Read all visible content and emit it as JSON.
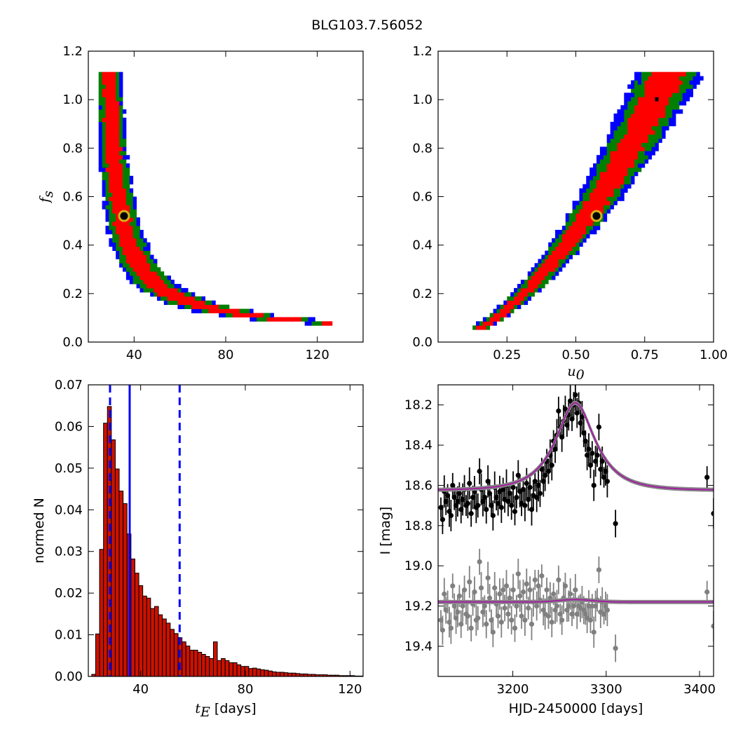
{
  "figure": {
    "title": "BLG103.7.56052"
  },
  "chart_data": [
    {
      "type": "heatmap",
      "id": "fs-vs-tE",
      "xlabel": "",
      "ylabel": "f_s",
      "xlim": [
        20,
        140
      ],
      "ylim": [
        0.0,
        1.2
      ],
      "xticks": [
        40,
        80,
        120
      ],
      "yticks": [
        0.0,
        0.2,
        0.4,
        0.6,
        0.8,
        1.0,
        1.2
      ],
      "levels": [
        {
          "name": "outer",
          "color": "#0000ff"
        },
        {
          "name": "2-sigma",
          "color": "#007f00"
        },
        {
          "name": "1-sigma",
          "color": "#ff0000"
        },
        {
          "name": "core",
          "color": "#000000"
        }
      ],
      "ridge": {
        "form": "power",
        "a": 0.1005,
        "c": 0.28,
        "p": 1.3
      },
      "best_fit": {
        "x": 35.6,
        "y": 0.52
      },
      "marker_colors": {
        "edge": "#d4b21a",
        "face": "#000000"
      }
    },
    {
      "type": "heatmap",
      "id": "fs-vs-u0",
      "xlabel": "u_0",
      "ylabel": "",
      "xlim": [
        0.0,
        1.0
      ],
      "ylim": [
        0.0,
        1.2
      ],
      "xticks": [
        0.25,
        0.5,
        0.75,
        1.0
      ],
      "xticklabels": [
        "0.25",
        "0.50",
        "0.75",
        "1.00"
      ],
      "yticks": [
        0.0,
        0.2,
        0.4,
        0.6,
        0.8,
        1.0,
        1.2
      ],
      "ridge": {
        "form": "power",
        "a": 1.45,
        "p": 1.73
      },
      "best_fit": {
        "x": 0.575,
        "y": 0.52
      }
    },
    {
      "type": "bar",
      "id": "tE-histogram",
      "xlabel": "t_E  [days]",
      "ylabel": "normed N",
      "xlim": [
        20,
        125
      ],
      "ylim": [
        0.0,
        0.07
      ],
      "xticks": [
        40,
        80,
        120
      ],
      "yticks": [
        0.0,
        0.01,
        0.02,
        0.03,
        0.04,
        0.05,
        0.06,
        0.07
      ],
      "ytick_labels": [
        "0.00",
        "0.01",
        "0.02",
        "0.03",
        "0.04",
        "0.05",
        "0.06",
        "0.07"
      ],
      "bin_start": 21.3,
      "bin_width": 1.5,
      "values": [
        0.0005,
        0.0102,
        0.0305,
        0.0608,
        0.0648,
        0.0568,
        0.0498,
        0.0445,
        0.0415,
        0.0342,
        0.0282,
        0.0248,
        0.0218,
        0.0193,
        0.0188,
        0.0163,
        0.0168,
        0.0148,
        0.0138,
        0.0128,
        0.0113,
        0.0103,
        0.0093,
        0.0083,
        0.0073,
        0.0063,
        0.0063,
        0.0058,
        0.0053,
        0.0048,
        0.0043,
        0.0083,
        0.0038,
        0.0043,
        0.0038,
        0.0033,
        0.0033,
        0.0028,
        0.0024,
        0.0024,
        0.0019,
        0.002,
        0.0018,
        0.0016,
        0.0015,
        0.0013,
        0.0011,
        0.001,
        0.001,
        0.0009,
        0.0008,
        0.0008,
        0.0007,
        0.0006,
        0.0006,
        0.0005,
        0.0005,
        0.0004,
        0.0004,
        0.0004,
        0.0003,
        0.0003,
        0.0003,
        0.0002,
        0.0002,
        0.0002,
        0.0002,
        0.0001,
        0.0001
      ],
      "bar_color": "#cc1100",
      "vlines": [
        {
          "x": 28.3,
          "style": "dashed",
          "color": "#0000ff"
        },
        {
          "x": 35.8,
          "style": "solid",
          "color": "#0000ff"
        },
        {
          "x": 54.9,
          "style": "dashed",
          "color": "#0000ff"
        }
      ]
    },
    {
      "type": "scatter",
      "id": "light-curve",
      "xlabel": "HJD-2450000 [days]",
      "ylabel": "I [mag]",
      "xlim": [
        3120,
        3415
      ],
      "ylim": [
        19.55,
        18.1
      ],
      "xticks": [
        3200,
        3300,
        3400
      ],
      "yticks": [
        18.2,
        18.4,
        18.6,
        18.8,
        19.0,
        19.2,
        19.4
      ],
      "ytick_labels": [
        "18.2",
        "18.4",
        "18.6",
        "18.8",
        "19.0",
        "19.2",
        "19.4"
      ],
      "model": {
        "t0": 3267,
        "tE": 35.8,
        "u0": 0.575,
        "fs": 0.52,
        "I_base": 18.625,
        "residual_base": 19.18
      },
      "colors": {
        "data": "#000000",
        "residuals": "#808080",
        "model": "#a020a0",
        "model_band": "#888888"
      },
      "series": [
        {
          "role": "data",
          "points": [
            [
              3123,
              18.71
            ],
            [
              3124.8,
              18.77
            ],
            [
              3126.6,
              18.63
            ],
            [
              3128.4,
              18.68
            ],
            [
              3130.2,
              18.65
            ],
            [
              3132,
              18.73
            ],
            [
              3133.8,
              18.75
            ],
            [
              3135.6,
              18.6
            ],
            [
              3137.4,
              18.66
            ],
            [
              3139.2,
              18.7
            ],
            [
              3141,
              18.68
            ],
            [
              3142.8,
              18.64
            ],
            [
              3144.6,
              18.72
            ],
            [
              3146.4,
              18.67
            ],
            [
              3148.2,
              18.62
            ],
            [
              3150,
              18.7
            ],
            [
              3151.8,
              18.69
            ],
            [
              3153.6,
              18.59
            ],
            [
              3155.4,
              18.74
            ],
            [
              3157.2,
              18.66
            ],
            [
              3159,
              18.63
            ],
            [
              3160.8,
              18.71
            ],
            [
              3162.6,
              18.7
            ],
            [
              3164.4,
              18.53
            ],
            [
              3166.2,
              18.62
            ],
            [
              3168,
              18.68
            ],
            [
              3169.8,
              18.66
            ],
            [
              3171.6,
              18.72
            ],
            [
              3173.4,
              18.58
            ],
            [
              3175.2,
              18.64
            ],
            [
              3177,
              18.7
            ],
            [
              3178.8,
              18.75
            ],
            [
              3180.6,
              18.61
            ],
            [
              3182.4,
              18.66
            ],
            [
              3184.2,
              18.69
            ],
            [
              3186,
              18.63
            ],
            [
              3187.8,
              18.71
            ],
            [
              3189.6,
              18.62
            ],
            [
              3191.4,
              18.67
            ],
            [
              3193.2,
              18.6
            ],
            [
              3195,
              18.68
            ],
            [
              3196.8,
              18.64
            ],
            [
              3198.6,
              18.7
            ],
            [
              3200.4,
              18.61
            ],
            [
              3202.2,
              18.73
            ],
            [
              3204,
              18.66
            ],
            [
              3205.8,
              18.55
            ],
            [
              3207.6,
              18.63
            ],
            [
              3209.4,
              18.69
            ],
            [
              3211.2,
              18.62
            ],
            [
              3213,
              18.7
            ],
            [
              3214.8,
              18.59
            ],
            [
              3216.6,
              18.67
            ],
            [
              3218.4,
              18.61
            ],
            [
              3220.2,
              18.72
            ],
            [
              3222,
              18.65
            ],
            [
              3223.8,
              18.58
            ],
            [
              3225.6,
              18.66
            ],
            [
              3227.4,
              18.6
            ],
            [
              3229.2,
              18.64
            ],
            [
              3231,
              18.52
            ],
            [
              3232.8,
              18.58
            ],
            [
              3234.6,
              18.55
            ],
            [
              3236.4,
              18.48
            ],
            [
              3238.2,
              18.53
            ],
            [
              3240,
              18.45
            ],
            [
              3241.8,
              18.5
            ],
            [
              3243.6,
              18.38
            ],
            [
              3245.4,
              18.42
            ],
            [
              3247.2,
              18.35
            ],
            [
              3249,
              18.23
            ],
            [
              3250.8,
              18.31
            ],
            [
              3252.6,
              18.36
            ],
            [
              3254.4,
              18.28
            ],
            [
              3256.2,
              18.22
            ],
            [
              3258,
              18.3
            ],
            [
              3259.8,
              18.25
            ],
            [
              3261.6,
              18.18
            ],
            [
              3263.4,
              18.27
            ],
            [
              3265.2,
              18.2
            ],
            [
              3267,
              18.15
            ],
            [
              3268.8,
              18.24
            ],
            [
              3270.6,
              18.19
            ],
            [
              3272.4,
              18.29
            ],
            [
              3274.2,
              18.26
            ],
            [
              3276,
              18.34
            ],
            [
              3277.8,
              18.38
            ],
            [
              3279.6,
              18.45
            ],
            [
              3281.4,
              18.42
            ],
            [
              3283.2,
              18.5
            ],
            [
              3285,
              18.44
            ],
            [
              3286.8,
              18.6
            ],
            [
              3288.6,
              18.48
            ],
            [
              3290.4,
              18.45
            ],
            [
              3292.2,
              18.31
            ],
            [
              3294,
              18.52
            ],
            [
              3295.8,
              18.48
            ],
            [
              3297.6,
              18.56
            ],
            [
              3299.4,
              18.53
            ],
            [
              3301.2,
              18.58
            ],
            [
              3310,
              18.79
            ],
            [
              3408,
              18.56
            ],
            [
              3415,
              18.74
            ]
          ]
        },
        {
          "role": "residuals",
          "points": [
            [
              3123,
              19.27
            ],
            [
              3124.8,
              19.32
            ],
            [
              3126.6,
              19.14
            ],
            [
              3128.4,
              19.22
            ],
            [
              3130.2,
              19.18
            ],
            [
              3132,
              19.28
            ],
            [
              3133.8,
              19.31
            ],
            [
              3135.6,
              19.1
            ],
            [
              3137.4,
              19.2
            ],
            [
              3139.2,
              19.26
            ],
            [
              3141,
              19.23
            ],
            [
              3142.8,
              19.15
            ],
            [
              3144.6,
              19.29
            ],
            [
              3146.4,
              19.2
            ],
            [
              3148.2,
              19.12
            ],
            [
              3150,
              19.24
            ],
            [
              3151.8,
              19.25
            ],
            [
              3153.6,
              19.08
            ],
            [
              3155.4,
              19.31
            ],
            [
              3157.2,
              19.19
            ],
            [
              3159,
              19.13
            ],
            [
              3160.8,
              19.27
            ],
            [
              3162.6,
              19.26
            ],
            [
              3164.4,
              18.98
            ],
            [
              3166.2,
              19.11
            ],
            [
              3168,
              19.23
            ],
            [
              3169.8,
              19.2
            ],
            [
              3171.6,
              19.29
            ],
            [
              3173.4,
              19.06
            ],
            [
              3175.2,
              19.16
            ],
            [
              3177,
              19.27
            ],
            [
              3178.8,
              19.33
            ],
            [
              3180.6,
              19.11
            ],
            [
              3182.4,
              19.19
            ],
            [
              3184.2,
              19.25
            ],
            [
              3186,
              19.14
            ],
            [
              3187.8,
              19.28
            ],
            [
              3189.6,
              19.12
            ],
            [
              3191.4,
              19.21
            ],
            [
              3193.2,
              19.1
            ],
            [
              3195,
              19.24
            ],
            [
              3196.8,
              19.16
            ],
            [
              3198.6,
              19.27
            ],
            [
              3200.4,
              19.12
            ],
            [
              3202.2,
              19.31
            ],
            [
              3204,
              19.2
            ],
            [
              3205.8,
              19.04
            ],
            [
              3207.6,
              19.15
            ],
            [
              3209.4,
              19.25
            ],
            [
              3211.2,
              19.13
            ],
            [
              3213,
              19.27
            ],
            [
              3214.8,
              19.09
            ],
            [
              3216.6,
              19.21
            ],
            [
              3218.4,
              19.12
            ],
            [
              3220.2,
              19.29
            ],
            [
              3222,
              19.18
            ],
            [
              3223.8,
              19.07
            ],
            [
              3225.6,
              19.2
            ],
            [
              3227.4,
              19.1
            ],
            [
              3229.2,
              19.17
            ],
            [
              3231,
              19.05
            ],
            [
              3232.8,
              19.22
            ],
            [
              3234.6,
              19.24
            ],
            [
              3236.4,
              19.12
            ],
            [
              3238.2,
              19.25
            ],
            [
              3240,
              19.16
            ],
            [
              3241.8,
              19.28
            ],
            [
              3243.6,
              19.14
            ],
            [
              3245.4,
              19.22
            ],
            [
              3247.2,
              19.2
            ],
            [
              3249,
              19.07
            ],
            [
              3250.8,
              19.24
            ],
            [
              3252.6,
              19.27
            ],
            [
              3254.4,
              19.16
            ],
            [
              3256.2,
              19.1
            ],
            [
              3258,
              19.22
            ],
            [
              3259.8,
              19.2
            ],
            [
              3261.6,
              19.14
            ],
            [
              3263.4,
              19.24
            ],
            [
              3265.2,
              19.2
            ],
            [
              3267,
              19.12
            ],
            [
              3268.8,
              19.24
            ],
            [
              3270.6,
              19.2
            ],
            [
              3272.4,
              19.21
            ],
            [
              3274.2,
              19.18
            ],
            [
              3276,
              19.22
            ],
            [
              3277.8,
              19.24
            ],
            [
              3279.6,
              19.26
            ],
            [
              3281.4,
              19.2
            ],
            [
              3283.2,
              19.27
            ],
            [
              3285,
              19.2
            ],
            [
              3286.8,
              19.33
            ],
            [
              3288.6,
              19.2
            ],
            [
              3290.4,
              19.17
            ],
            [
              3292.2,
              19.02
            ],
            [
              3294,
              19.23
            ],
            [
              3295.8,
              19.18
            ],
            [
              3297.6,
              19.24
            ],
            [
              3299.4,
              19.2
            ],
            [
              3301.2,
              19.22
            ],
            [
              3310,
              19.41
            ],
            [
              3408,
              19.13
            ],
            [
              3415,
              19.3
            ]
          ]
        }
      ]
    }
  ]
}
